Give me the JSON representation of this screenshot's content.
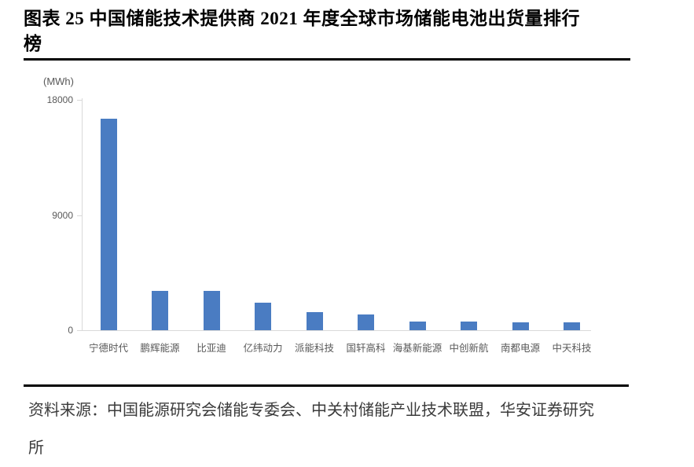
{
  "figure": {
    "title_lines": [
      "图表 25 中国储能技术提供商 2021 年度全球市场储能电池出货量排行",
      "榜"
    ],
    "title_full": "图表 25 中国储能技术提供商 2021 年度全球市场储能电池出货量排行榜"
  },
  "chart_data": {
    "type": "bar",
    "title": "中国储能技术提供商2021年度全球市场储能电池出货量排行榜",
    "unit_label": "(MWh)",
    "categories": [
      "宁德时代",
      "鹏辉能源",
      "比亚迪",
      "亿纬动力",
      "派能科技",
      "国轩高科",
      "海基新能源",
      "中创新航",
      "南都电源",
      "中天科技"
    ],
    "values": [
      16500,
      3100,
      3050,
      2160,
      1400,
      1250,
      700,
      660,
      630,
      620
    ],
    "xlabel": "",
    "ylabel": "MWh",
    "ylim": [
      0,
      18000
    ],
    "yticks": [
      18000,
      9000,
      0
    ],
    "grid": false,
    "legend": "none",
    "bar_color": "#4a7cc2",
    "axis_color": "#d9d9d9",
    "tick_label_color": "#595959"
  },
  "source": {
    "lines": [
      "资料来源：中国能源研究会储能专委会、中关村储能产业技术联盟，华安证券研究",
      "所"
    ],
    "text": "资料来源：中国能源研究会储能专委会、中关村储能产业技术联盟，华安证券研究所"
  }
}
